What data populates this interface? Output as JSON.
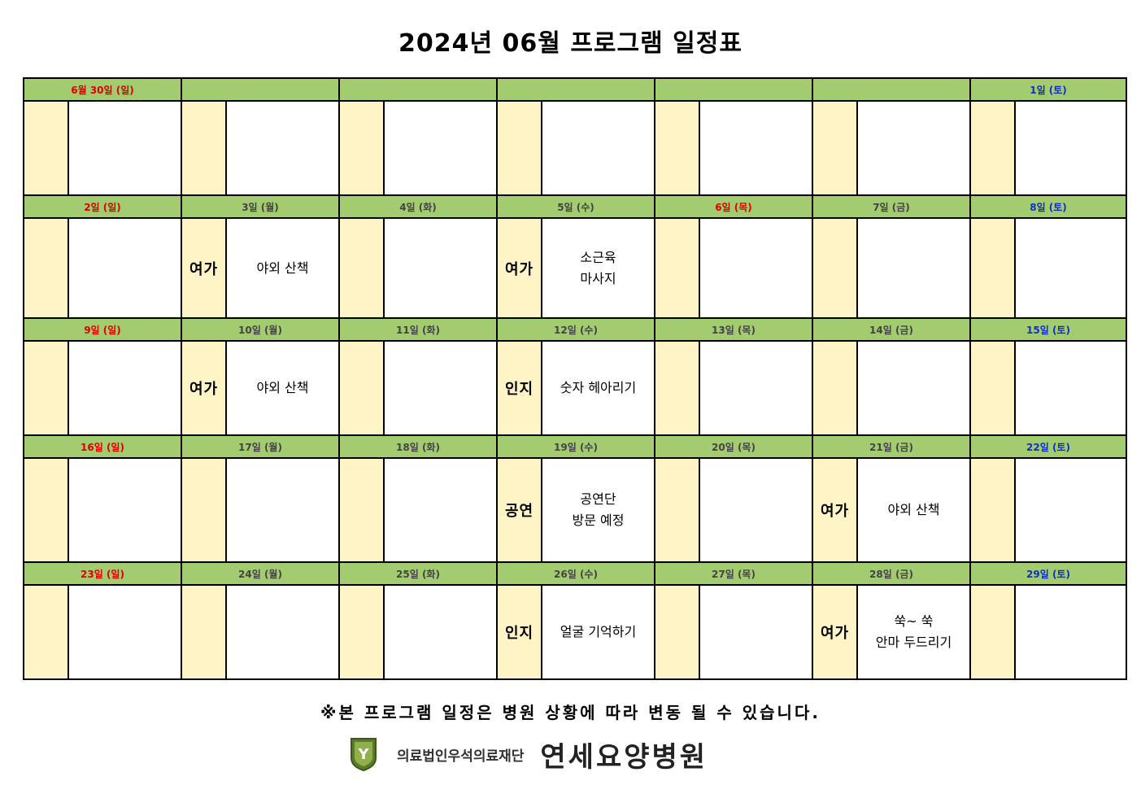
{
  "title": "2024년 06월 프로그램 일정표",
  "colors": {
    "header_bg": "#a3cb70",
    "category_bg": "#fff4c6",
    "sunday_text": "#e00000",
    "saturday_text": "#1030c8"
  },
  "weeks": [
    {
      "headers": [
        "6월 30일 (일)",
        "",
        "",
        "",
        "",
        "",
        "1일 (토)"
      ],
      "days": [
        {
          "cat": "",
          "act": [
            "",
            ""
          ]
        },
        {
          "cat": "",
          "act": [
            "",
            ""
          ]
        },
        {
          "cat": "",
          "act": [
            "",
            ""
          ]
        },
        {
          "cat": "",
          "act": [
            "",
            ""
          ]
        },
        {
          "cat": "",
          "act": [
            "",
            ""
          ]
        },
        {
          "cat": "",
          "act": [
            "",
            ""
          ]
        },
        {
          "cat": "",
          "act": [
            "",
            ""
          ]
        }
      ]
    },
    {
      "headers": [
        "2일 (일)",
        "3일 (월)",
        "4일 (화)",
        "5일 (수)",
        "6일 (목)",
        "7일 (금)",
        "8일 (토)"
      ],
      "days": [
        {
          "cat": "",
          "act": [
            "",
            ""
          ]
        },
        {
          "cat": "여가",
          "act": [
            "야외 산책",
            ""
          ]
        },
        {
          "cat": "",
          "act": [
            "",
            ""
          ]
        },
        {
          "cat": "여가",
          "act": [
            "소근육",
            "마사지"
          ]
        },
        {
          "cat": "",
          "act": [
            "",
            ""
          ]
        },
        {
          "cat": "",
          "act": [
            "",
            ""
          ]
        },
        {
          "cat": "",
          "act": [
            "",
            ""
          ]
        }
      ]
    },
    {
      "headers": [
        "9일 (일)",
        "10일 (월)",
        "11일 (화)",
        "12일 (수)",
        "13일 (목)",
        "14일 (금)",
        "15일 (토)"
      ],
      "days": [
        {
          "cat": "",
          "act": [
            "",
            ""
          ]
        },
        {
          "cat": "여가",
          "act": [
            "야외 산책",
            ""
          ]
        },
        {
          "cat": "",
          "act": [
            "",
            ""
          ]
        },
        {
          "cat": "인지",
          "act": [
            "숫자 헤아리기",
            ""
          ]
        },
        {
          "cat": "",
          "act": [
            "",
            ""
          ]
        },
        {
          "cat": "",
          "act": [
            "",
            ""
          ]
        },
        {
          "cat": "",
          "act": [
            "",
            ""
          ]
        }
      ]
    },
    {
      "headers": [
        "16일 (일)",
        "17일 (월)",
        "18일 (화)",
        "19일 (수)",
        "20일 (목)",
        "21일 (금)",
        "22일 (토)"
      ],
      "days": [
        {
          "cat": "",
          "act": [
            "",
            ""
          ]
        },
        {
          "cat": "",
          "act": [
            "",
            ""
          ]
        },
        {
          "cat": "",
          "act": [
            "",
            ""
          ]
        },
        {
          "cat": "공연",
          "act": [
            "공연단",
            "방문 예정"
          ]
        },
        {
          "cat": "",
          "act": [
            "",
            ""
          ]
        },
        {
          "cat": "여가",
          "act": [
            "야외 산책",
            ""
          ]
        },
        {
          "cat": "",
          "act": [
            "",
            ""
          ]
        }
      ]
    },
    {
      "headers": [
        "23일 (일)",
        "24일 (월)",
        "25일 (화)",
        "26일 (수)",
        "27일 (목)",
        "28일 (금)",
        "29일 (토)"
      ],
      "days": [
        {
          "cat": "",
          "act": [
            "",
            ""
          ]
        },
        {
          "cat": "",
          "act": [
            "",
            ""
          ]
        },
        {
          "cat": "",
          "act": [
            "",
            ""
          ]
        },
        {
          "cat": "인지",
          "act": [
            "얼굴 기억하기",
            ""
          ]
        },
        {
          "cat": "",
          "act": [
            "",
            ""
          ]
        },
        {
          "cat": "여가",
          "act": [
            "쑥~ 쑥",
            "안마 두드리기"
          ]
        },
        {
          "cat": "",
          "act": [
            "",
            ""
          ]
        }
      ]
    }
  ],
  "notice": "※본 프로그램 일정은 병원 상황에 따라 변동 될 수 있습니다.",
  "footer": {
    "logo_letter": "Y",
    "foundation": "의료법인우석의료재단",
    "hospital": "연세요양병원"
  }
}
